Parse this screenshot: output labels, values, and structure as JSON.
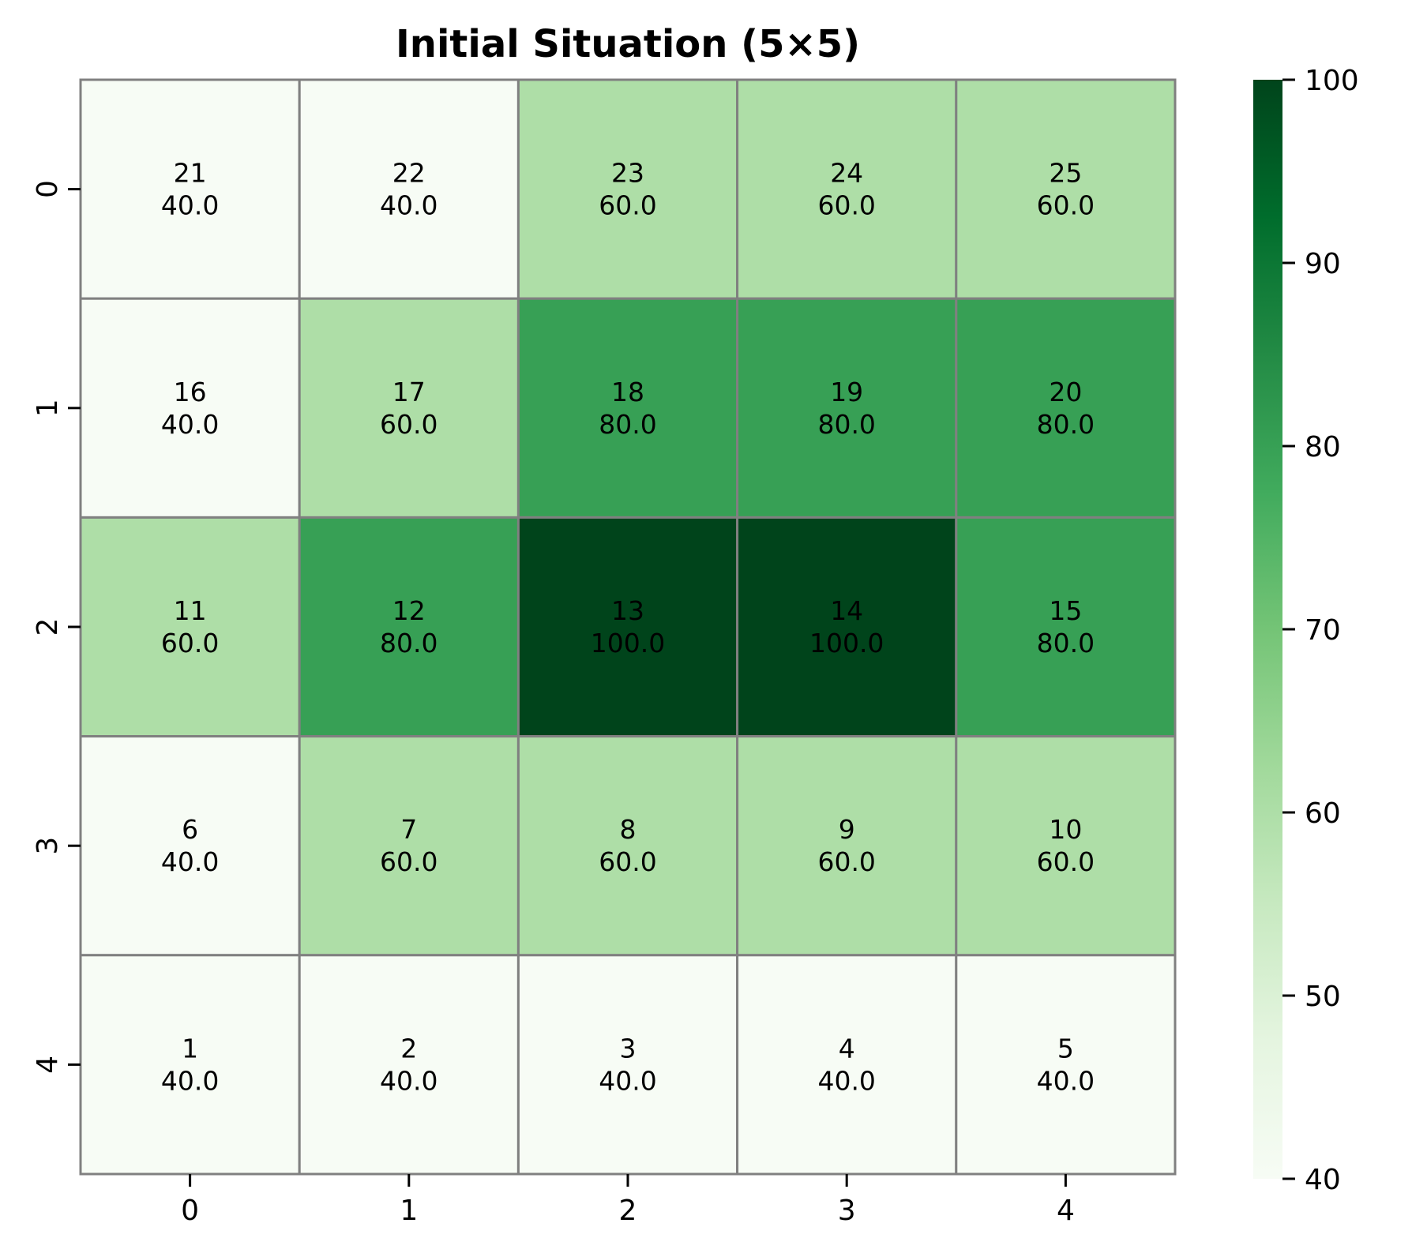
{
  "chart_data": {
    "type": "heatmap",
    "title": "Initial Situation (5×5)",
    "xlabel": "",
    "ylabel": "",
    "x_ticks": [
      "0",
      "1",
      "2",
      "3",
      "4"
    ],
    "y_ticks": [
      "0",
      "1",
      "2",
      "3",
      "4"
    ],
    "values": [
      [
        40.0,
        40.0,
        60.0,
        60.0,
        60.0
      ],
      [
        40.0,
        60.0,
        80.0,
        80.0,
        80.0
      ],
      [
        60.0,
        80.0,
        100.0,
        100.0,
        80.0
      ],
      [
        40.0,
        60.0,
        60.0,
        60.0,
        60.0
      ],
      [
        40.0,
        40.0,
        40.0,
        40.0,
        40.0
      ]
    ],
    "cell_ids": [
      [
        21,
        22,
        23,
        24,
        25
      ],
      [
        16,
        17,
        18,
        19,
        20
      ],
      [
        11,
        12,
        13,
        14,
        15
      ],
      [
        6,
        7,
        8,
        9,
        10
      ],
      [
        1,
        2,
        3,
        4,
        5
      ]
    ],
    "colormap": "Greens",
    "colorbar": {
      "range": [
        40,
        100
      ],
      "ticks": [
        40,
        50,
        60,
        70,
        80,
        90,
        100
      ]
    },
    "grid_line_color": "#808080",
    "grid": true,
    "legend": "colorbar-right"
  }
}
